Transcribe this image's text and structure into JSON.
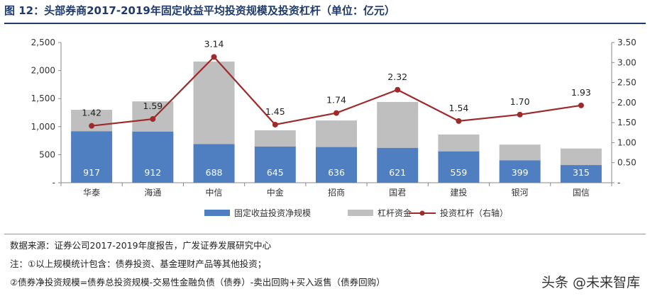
{
  "title": "图 12：头部券商2017-2019年固定收益平均投资规模及投资杠杆（单位：亿元）",
  "notes": {
    "source": "数据来源：证券公司2017-2019年度报告，广发证券发展研究中心",
    "note1": "注：①以上规模统计包含：债券投资、基金理财产品等其他投资；",
    "note2": "②债券净投资规模=债券总投资规模-交易性金融负债（债券）-卖出回购+买入返售（债券回购）"
  },
  "watermark": "头条 @未来智库",
  "colors": {
    "net": "#4f7fc0",
    "leverage_funds": "#bfbfbf",
    "leverage_line": "#9e2a2b",
    "axis": "#888888"
  },
  "chart_data": {
    "type": "bar",
    "stacked": true,
    "categories": [
      "华泰",
      "海通",
      "中信",
      "中金",
      "招商",
      "国君",
      "建投",
      "银河",
      "国信"
    ],
    "series": [
      {
        "name": "固定收益投资净规模",
        "type": "bar",
        "axis": "left",
        "values": [
          917,
          912,
          688,
          645,
          636,
          621,
          559,
          399,
          315
        ]
      },
      {
        "name": "杠杆资金",
        "type": "bar",
        "axis": "left",
        "values": [
          383,
          538,
          1472,
          290,
          474,
          819,
          301,
          281,
          295
        ]
      },
      {
        "name": "投资杠杆",
        "legend_suffix": "（右轴）",
        "type": "line",
        "axis": "right",
        "values": [
          1.42,
          1.59,
          3.14,
          1.45,
          1.74,
          2.32,
          1.54,
          1.7,
          1.93
        ]
      }
    ],
    "left_axis": {
      "min": 0,
      "max": 2500,
      "ticks": [
        "-",
        "500",
        "1,000",
        "1,500",
        "2,000",
        "2,500"
      ]
    },
    "right_axis": {
      "min": 0,
      "max": 3.5,
      "ticks": [
        "-",
        "0.50",
        "1.00",
        "1.50",
        "2.00",
        "2.50",
        "3.00",
        "3.50"
      ]
    },
    "grid": false,
    "legend_position": "bottom"
  }
}
